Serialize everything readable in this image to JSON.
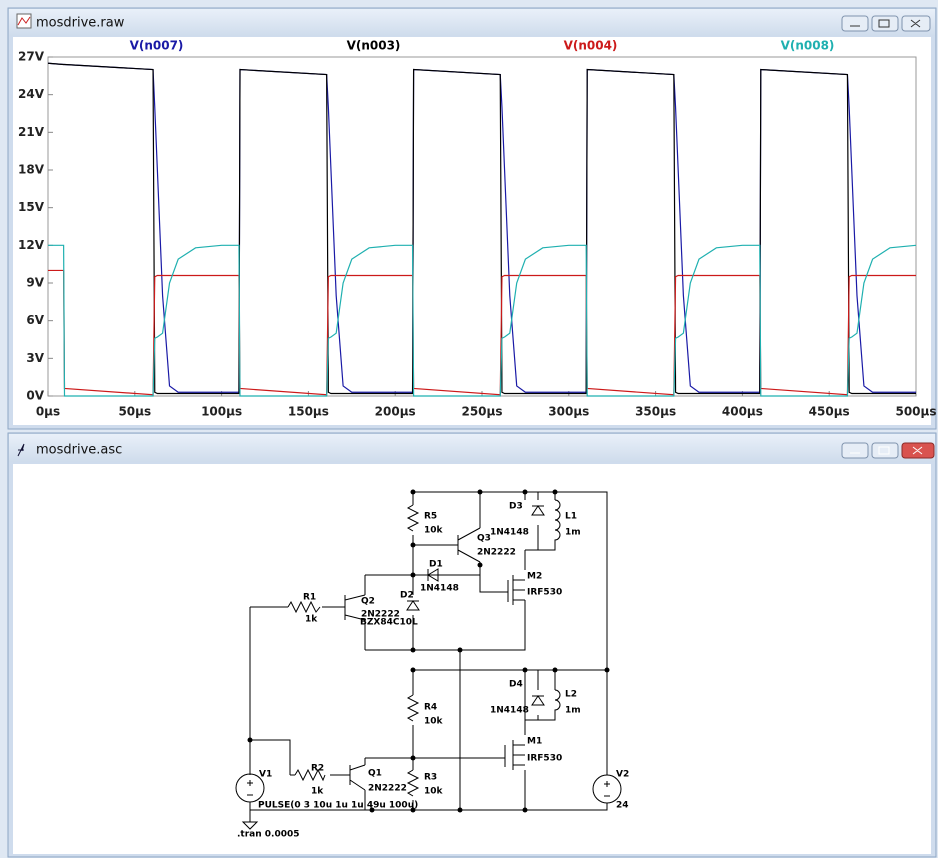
{
  "windows": [
    {
      "title": "mosdrive.raw"
    },
    {
      "title": "mosdrive.asc"
    }
  ],
  "chart_data": {
    "type": "line",
    "x": [
      0,
      9,
      9.5,
      60.5,
      61.5,
      63,
      66,
      70,
      75,
      85,
      100,
      110,
      110.6,
      160.5,
      161.5,
      163,
      166,
      170,
      175,
      185,
      200,
      210,
      210.6,
      260.5,
      261.5,
      263,
      266,
      270,
      275,
      285,
      300,
      310,
      310.6,
      360.5,
      361.5,
      363,
      366,
      370,
      375,
      385,
      400,
      410,
      410.6,
      460.5,
      461.5,
      463,
      466,
      470,
      475,
      485,
      500
    ],
    "series": [
      {
        "name": "V(n007)",
        "color": "#1a1aa6",
        "values": [
          26.5,
          26.4,
          26.4,
          26.0,
          23,
          18,
          8,
          0.8,
          0.3,
          0.3,
          0.3,
          0.3,
          26,
          25.6,
          23,
          18,
          8,
          0.8,
          0.3,
          0.3,
          0.3,
          0.3,
          26,
          25.6,
          23,
          18,
          8,
          0.8,
          0.3,
          0.3,
          0.3,
          0.3,
          26,
          25.6,
          23,
          18,
          8,
          0.8,
          0.3,
          0.3,
          0.3,
          0.3,
          26,
          25.6,
          23,
          18,
          8,
          0.8,
          0.3,
          0.3,
          0.3
        ]
      },
      {
        "name": "V(n003)",
        "color": "#000000",
        "values": [
          26.5,
          26.4,
          26.4,
          26.0,
          0.3,
          0.2,
          0.2,
          0.2,
          0.2,
          0.2,
          0.2,
          0.2,
          26,
          25.6,
          0.3,
          0.2,
          0.2,
          0.2,
          0.2,
          0.2,
          0.2,
          0.2,
          26,
          25.6,
          0.3,
          0.2,
          0.2,
          0.2,
          0.2,
          0.2,
          0.2,
          0.2,
          26,
          25.6,
          0.3,
          0.2,
          0.2,
          0.2,
          0.2,
          0.2,
          0.2,
          0.2,
          26,
          25.6,
          0.3,
          0.2,
          0.2,
          0.2,
          0.2,
          0.2,
          0.2
        ]
      },
      {
        "name": "V(n004)",
        "color": "#cc1a1a",
        "values": [
          10,
          10,
          0.6,
          0.1,
          9.5,
          9.6,
          9.6,
          9.6,
          9.6,
          9.6,
          9.6,
          9.6,
          0.6,
          0.1,
          9.5,
          9.6,
          9.6,
          9.6,
          9.6,
          9.6,
          9.6,
          9.6,
          0.6,
          0.1,
          9.5,
          9.6,
          9.6,
          9.6,
          9.6,
          9.6,
          9.6,
          9.6,
          0.6,
          0.1,
          9.5,
          9.6,
          9.6,
          9.6,
          9.6,
          9.6,
          9.6,
          9.6,
          0.6,
          0.1,
          9.5,
          9.6,
          9.6,
          9.6,
          9.6,
          9.6,
          9.6
        ]
      },
      {
        "name": "V(n008)",
        "color": "#1fb0b0",
        "values": [
          12,
          12,
          0,
          0,
          4.6,
          4.7,
          5.0,
          9.0,
          10.9,
          11.8,
          12,
          12,
          0,
          0,
          4.6,
          4.7,
          5.0,
          9.0,
          10.9,
          11.8,
          12,
          12,
          0,
          0,
          4.6,
          4.7,
          5.0,
          9.0,
          10.9,
          11.8,
          12,
          12,
          0,
          0,
          4.6,
          4.7,
          5.0,
          9.0,
          10.9,
          11.8,
          12,
          12,
          0,
          0,
          4.6,
          4.7,
          5.0,
          9.0,
          10.9,
          11.8,
          12
        ]
      }
    ],
    "xlim": [
      0,
      500
    ],
    "ylim": [
      0,
      27
    ],
    "xticks": [
      {
        "value": 0,
        "label": "0µs"
      },
      {
        "value": 50,
        "label": "50µs"
      },
      {
        "value": 100,
        "label": "100µs"
      },
      {
        "value": 150,
        "label": "150µs"
      },
      {
        "value": 200,
        "label": "200µs"
      },
      {
        "value": 250,
        "label": "250µs"
      },
      {
        "value": 300,
        "label": "300µs"
      },
      {
        "value": 350,
        "label": "350µs"
      },
      {
        "value": 400,
        "label": "400µs"
      },
      {
        "value": 450,
        "label": "450µs"
      },
      {
        "value": 500,
        "label": "500µs"
      }
    ],
    "yticks": [
      {
        "value": 0,
        "label": "0V"
      },
      {
        "value": 3,
        "label": "3V"
      },
      {
        "value": 6,
        "label": "6V"
      },
      {
        "value": 9,
        "label": "9V"
      },
      {
        "value": 12,
        "label": "12V"
      },
      {
        "value": 15,
        "label": "15V"
      },
      {
        "value": 18,
        "label": "18V"
      },
      {
        "value": 21,
        "label": "21V"
      },
      {
        "value": 24,
        "label": "24V"
      },
      {
        "value": 27,
        "label": "27V"
      }
    ],
    "grid": false
  },
  "schematic": {
    "components": [
      {
        "ref": "R5",
        "value": "10k"
      },
      {
        "ref": "Q3",
        "value": "2N2222"
      },
      {
        "ref": "D3",
        "value": "1N4148"
      },
      {
        "ref": "L1",
        "value": "1m"
      },
      {
        "ref": "D1",
        "value": "1N4148"
      },
      {
        "ref": "M2",
        "value": "IRF530"
      },
      {
        "ref": "R1",
        "value": "1k"
      },
      {
        "ref": "Q2",
        "value": "2N2222"
      },
      {
        "ref": "D2",
        "value": "BZX84C10L"
      },
      {
        "ref": "R4",
        "value": "10k"
      },
      {
        "ref": "D4",
        "value": "1N4148"
      },
      {
        "ref": "L2",
        "value": "1m"
      },
      {
        "ref": "M1",
        "value": "IRF530"
      },
      {
        "ref": "V1",
        "value": "PULSE(0 3 10u 1u 1u 49u 100u)"
      },
      {
        "ref": "R2",
        "value": "1k"
      },
      {
        "ref": "Q1",
        "value": "2N2222"
      },
      {
        "ref": "R3",
        "value": "10k"
      },
      {
        "ref": "V2",
        "value": "24"
      }
    ],
    "directives": [
      ".tran 0.0005"
    ]
  }
}
